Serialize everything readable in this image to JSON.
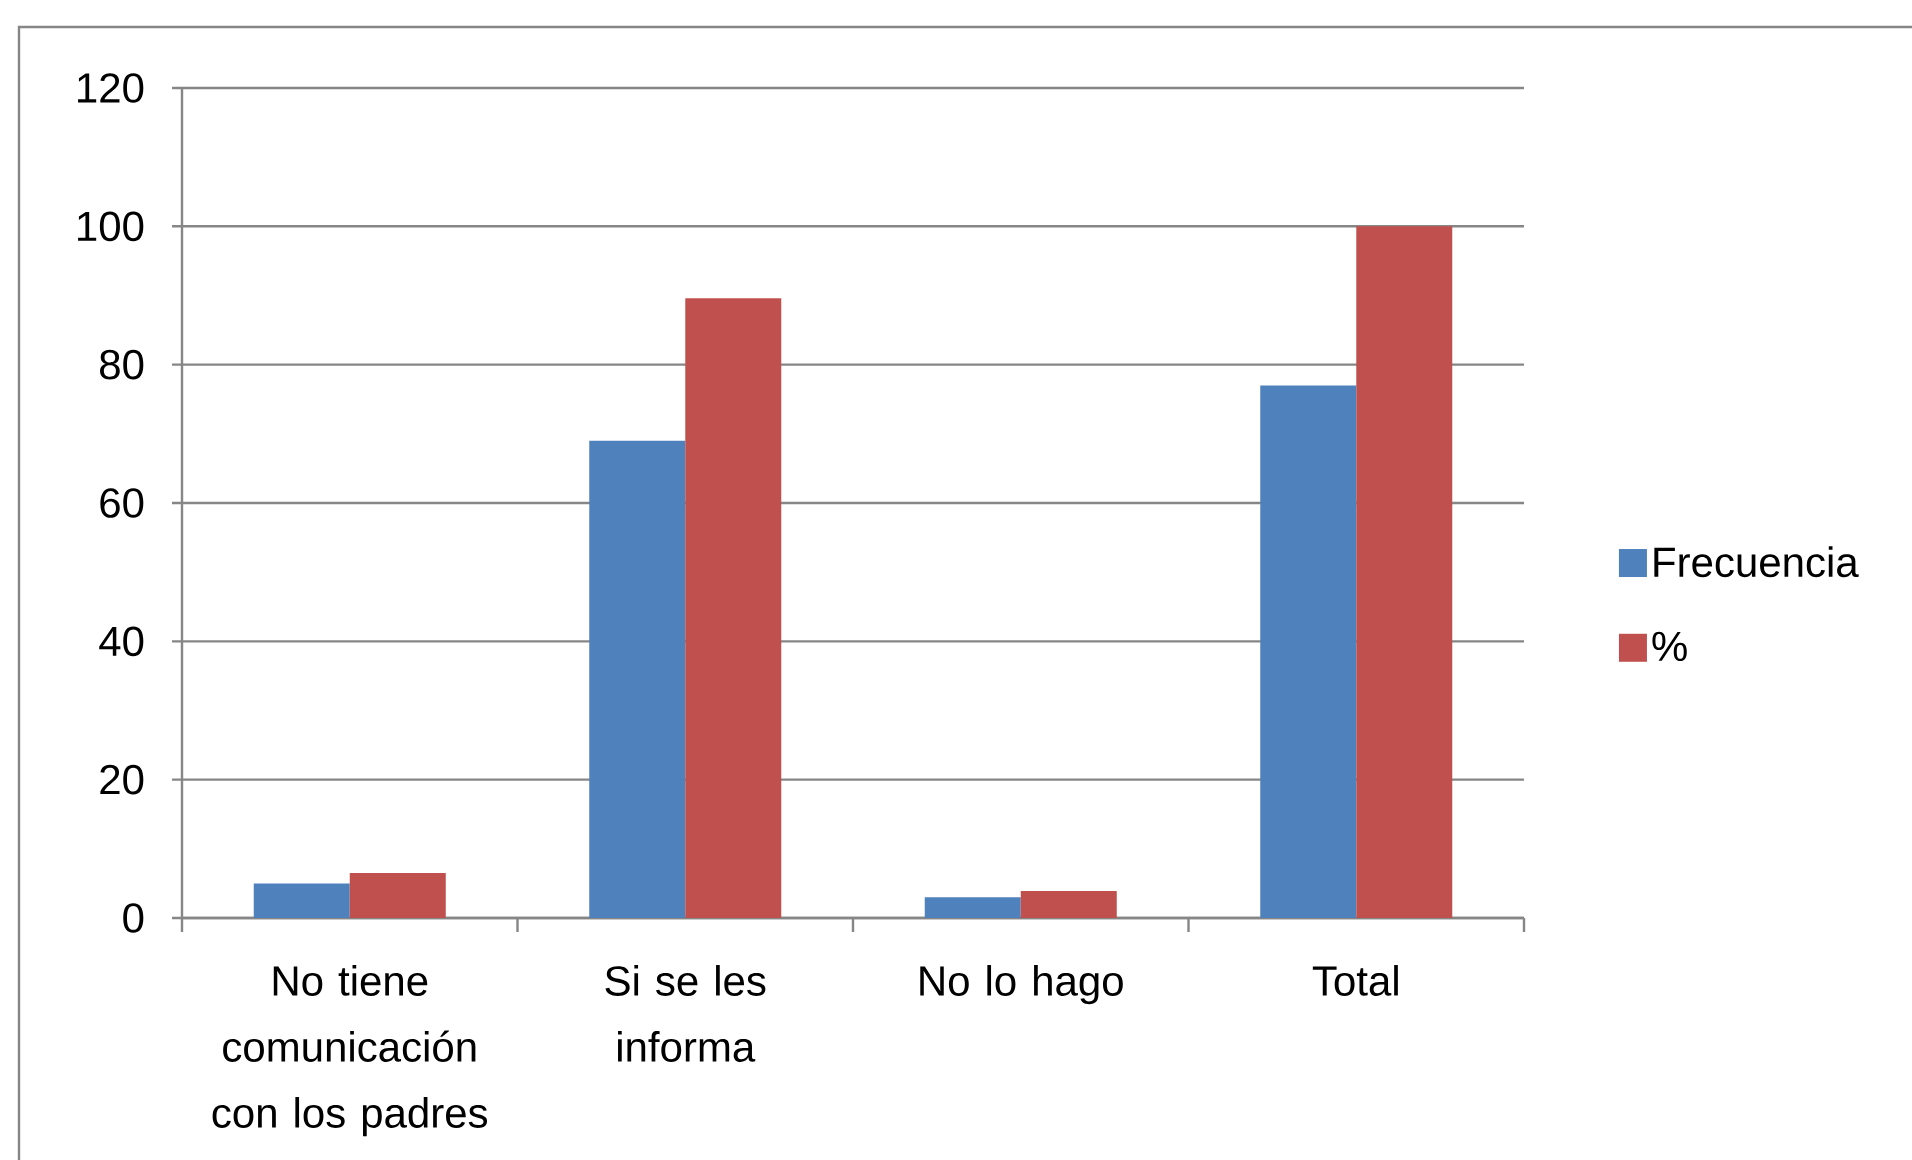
{
  "chart_data": {
    "type": "bar",
    "categories": [
      "No tiene comunicación con los padres",
      "Si se les informa",
      "No lo hago",
      "Total"
    ],
    "series": [
      {
        "name": "Frecuencia",
        "color": "#4f81bd",
        "values": [
          5,
          69,
          3,
          77
        ]
      },
      {
        "name": "%",
        "color": "#c0504d",
        "values": [
          6.5,
          89.6,
          3.9,
          100
        ]
      }
    ],
    "ylim": [
      0,
      120
    ],
    "yticks": [
      0,
      20,
      40,
      60,
      80,
      100,
      120
    ],
    "grid": "y",
    "legend": "right"
  }
}
